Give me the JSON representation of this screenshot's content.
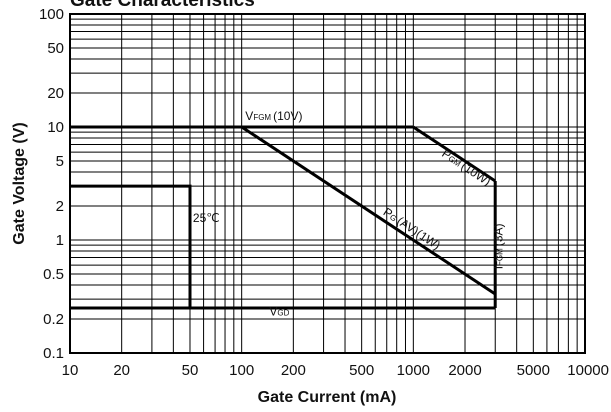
{
  "chart_data": {
    "type": "line",
    "title": "Gate Characteristics",
    "xlabel": "Gate Current (mA)",
    "ylabel": "Gate Voltage (V)",
    "x_scale": "log",
    "y_scale": "log",
    "xlim": [
      10,
      10000
    ],
    "ylim": [
      0.1,
      100
    ],
    "x_ticks": [
      {
        "value": 10,
        "label": "10"
      },
      {
        "value": 20,
        "label": "20"
      },
      {
        "value": 50,
        "label": "50"
      },
      {
        "value": 100,
        "label": "100"
      },
      {
        "value": 200,
        "label": "200"
      },
      {
        "value": 500,
        "label": "500"
      },
      {
        "value": 1000,
        "label": "1000"
      },
      {
        "value": 2000,
        "label": "2000"
      },
      {
        "value": 5000,
        "label": "5000"
      },
      {
        "value": 10000,
        "label": "10000"
      }
    ],
    "y_ticks": [
      {
        "value": 0.1,
        "label": "0.1"
      },
      {
        "value": 0.2,
        "label": "0.2"
      },
      {
        "value": 0.5,
        "label": "0.5"
      },
      {
        "value": 1,
        "label": "1"
      },
      {
        "value": 2,
        "label": "2"
      },
      {
        "value": 5,
        "label": "5"
      },
      {
        "value": 10,
        "label": "10"
      },
      {
        "value": 20,
        "label": "20"
      },
      {
        "value": 50,
        "label": "50"
      },
      {
        "value": 100,
        "label": "100"
      }
    ],
    "grid": true,
    "series": [
      {
        "key": "vfgm",
        "points": [
          [
            10,
            10
          ],
          [
            1000,
            10
          ]
        ]
      },
      {
        "key": "pgm",
        "points": [
          [
            1000,
            10
          ],
          [
            3000,
            3.33
          ]
        ]
      },
      {
        "key": "ifgm",
        "points": [
          [
            3000,
            3.33
          ],
          [
            3000,
            0.25
          ]
        ]
      },
      {
        "key": "pgav",
        "points": [
          [
            100,
            10
          ],
          [
            3000,
            0.333
          ]
        ]
      },
      {
        "key": "vgd",
        "points": [
          [
            10,
            0.25
          ],
          [
            3000,
            0.25
          ]
        ]
      },
      {
        "key": "t25",
        "points": [
          [
            10,
            3
          ],
          [
            50,
            3
          ],
          [
            50,
            0.25
          ]
        ]
      }
    ],
    "annotations": [
      {
        "key": "vfgm",
        "main": "V",
        "sub": "FGM",
        "rest": "(10V)",
        "at": [
          105,
          11.5
        ],
        "rotate": false
      },
      {
        "key": "pgm",
        "main": "P",
        "sub": "GM",
        "rest": "(10W)",
        "at": [
          1450,
          5.6
        ],
        "rotate": "slope"
      },
      {
        "key": "pgav",
        "main": "P",
        "sub": "G",
        "rest": "(AV)(1W)",
        "at": [
          660,
          1.7
        ],
        "rotate": "slope"
      },
      {
        "key": "ifgm",
        "main": "I",
        "sub": "FGM",
        "rest": "(3A)",
        "at": [
          3300,
          0.55
        ],
        "rotate": "vertical"
      },
      {
        "key": "t25",
        "main": "25℃",
        "sub": "",
        "rest": "",
        "at": [
          52,
          1.45
        ],
        "rotate": false
      },
      {
        "key": "vgd",
        "main": "V",
        "sub": "GD",
        "rest": "",
        "at": [
          145,
          0.215
        ],
        "rotate": false
      }
    ]
  }
}
